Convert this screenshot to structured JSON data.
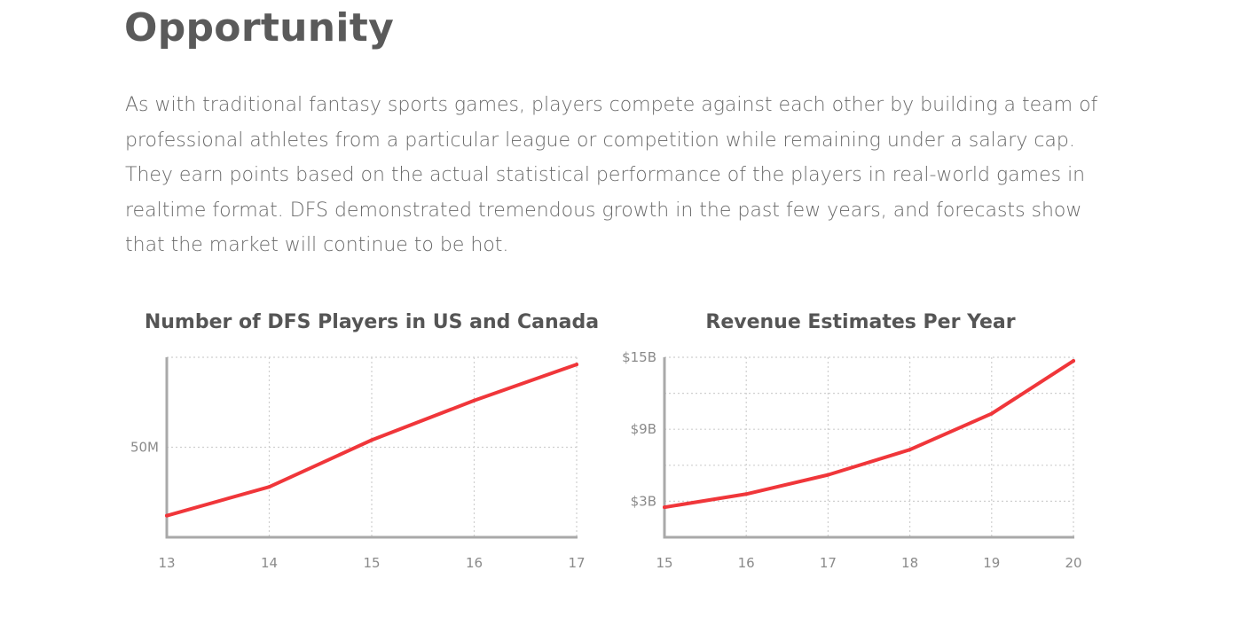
{
  "header": {
    "title": "Opportunity",
    "intro": "As with traditional fantasy sports games, players compete against each other by building a team of professional athletes from a particular league or competition while remaining under a salary cap. They earn points based on the actual statistical performance of the players in real-world games in realtime format. DFS demonstrated tremendous growth in the past few years, and forecasts show that the market will continue to be hot."
  },
  "colors": {
    "series": "#f0363a",
    "axis": "#a9a9a9",
    "grid": "#cfcfcf"
  },
  "chart_data": [
    {
      "type": "line",
      "title": "Number of DFS Players in US and Canada",
      "xlabel": "",
      "ylabel": "",
      "x": [
        "13",
        "14",
        "15",
        "16",
        "17"
      ],
      "series": [
        {
          "values": [
            12,
            28,
            54,
            76,
            96
          ]
        }
      ],
      "ylim": [
        0,
        100
      ],
      "yticks": [
        {
          "value": 50,
          "label": "50M"
        }
      ],
      "y_gridlines": [
        0,
        50,
        100
      ],
      "grid": true,
      "legend": "none"
    },
    {
      "type": "line",
      "title": "Revenue Estimates Per Year",
      "xlabel": "",
      "ylabel": "",
      "x": [
        "15",
        "16",
        "17",
        "18",
        "19",
        "20"
      ],
      "series": [
        {
          "values": [
            2.5,
            3.6,
            5.2,
            7.3,
            10.3,
            14.7
          ]
        }
      ],
      "ylim": [
        0,
        15
      ],
      "yticks": [
        {
          "value": 3,
          "label": "$3B"
        },
        {
          "value": 9,
          "label": "$9B"
        },
        {
          "value": 15,
          "label": "$15B"
        }
      ],
      "y_gridlines": [
        3,
        6,
        9,
        12,
        15
      ],
      "grid": true,
      "legend": "none"
    }
  ]
}
